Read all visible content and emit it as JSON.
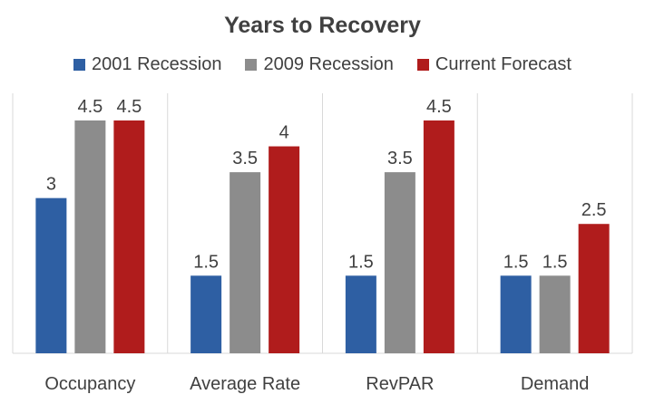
{
  "chart_data": {
    "type": "bar",
    "title": "Years to Recovery",
    "categories": [
      "Occupancy",
      "Average Rate",
      "RevPAR",
      "Demand"
    ],
    "series": [
      {
        "name": "2001 Recession",
        "values": [
          3,
          1.5,
          1.5,
          1.5
        ],
        "color": "#2E5FA3"
      },
      {
        "name": "2009 Recession",
        "values": [
          4.5,
          3.5,
          3.5,
          1.5
        ],
        "color": "#8C8C8C"
      },
      {
        "name": "Current Forecast",
        "values": [
          4.5,
          4,
          4.5,
          2.5
        ],
        "color": "#B01C1C"
      }
    ],
    "xlabel": "",
    "ylabel": "",
    "ylim": [
      0,
      4.5
    ],
    "grid": false,
    "legend_position": "top"
  }
}
